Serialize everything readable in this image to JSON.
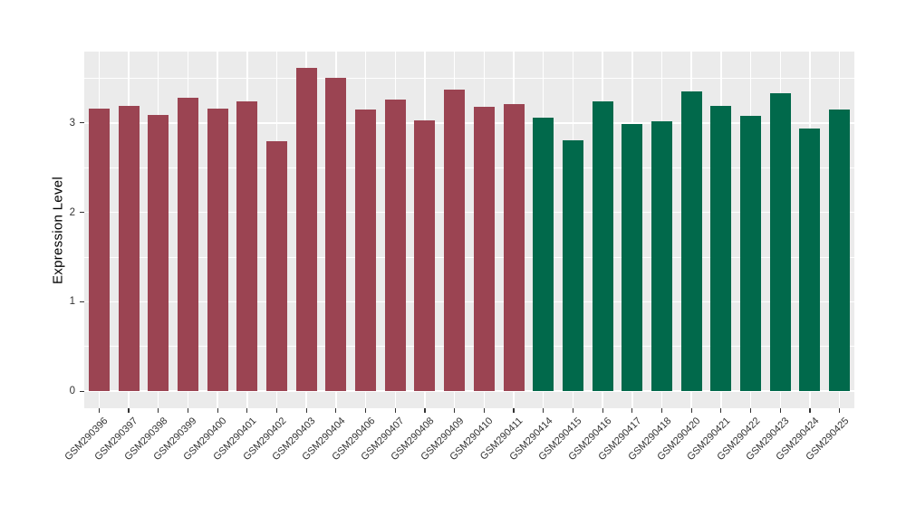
{
  "chart_data": {
    "type": "bar",
    "title": "",
    "xlabel": "",
    "ylabel": "Expression Level",
    "ylim": [
      0,
      3.8
    ],
    "yticks": [
      0,
      1,
      2,
      3
    ],
    "yminor": [
      0.5,
      1.5,
      2.5,
      3.5
    ],
    "grid": "horizontal major+minor and vertical major (at category centers), white on gray panel",
    "legend_position": "none",
    "categories": [
      "GSM290396",
      "GSM290397",
      "GSM290398",
      "GSM290399",
      "GSM290400",
      "GSM290401",
      "GSM290402",
      "GSM290403",
      "GSM290404",
      "GSM290406",
      "GSM290407",
      "GSM290408",
      "GSM290409",
      "GSM290410",
      "GSM290411",
      "GSM290414",
      "GSM290415",
      "GSM290416",
      "GSM290417",
      "GSM290418",
      "GSM290420",
      "GSM290421",
      "GSM290422",
      "GSM290423",
      "GSM290424",
      "GSM290425"
    ],
    "values": [
      3.16,
      3.19,
      3.09,
      3.28,
      3.16,
      3.24,
      2.8,
      3.62,
      3.51,
      3.15,
      3.26,
      3.03,
      3.37,
      3.18,
      3.21,
      3.06,
      2.81,
      3.24,
      2.99,
      3.02,
      3.35,
      3.19,
      3.08,
      3.33,
      2.94,
      3.15
    ],
    "group_sizes": [
      15,
      11
    ],
    "group_colors": [
      "#9B4452",
      "#01694B"
    ]
  },
  "style": {
    "panel_bg": "#EBEBEB",
    "grid_color": "#FFFFFF",
    "tick_color": "#333333",
    "tick_label_color": "#333333",
    "axis_title_color": "#000000",
    "figure_bg": "#FFFFFF"
  }
}
